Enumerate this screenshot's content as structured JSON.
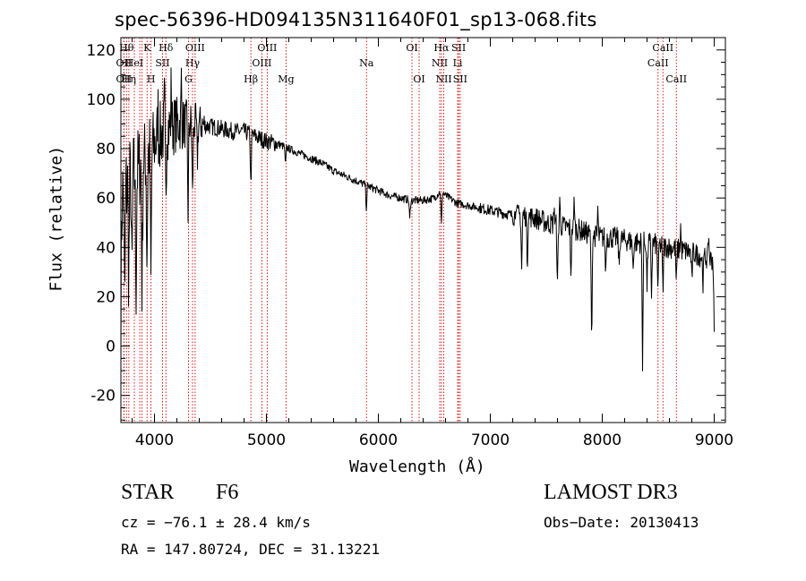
{
  "chart_data": {
    "type": "line",
    "title": "spec-56396-HD094135N311640F01_sp13-068.fits",
    "xlabel": "Wavelength (Å)",
    "ylabel": "Flux (relative)",
    "xlim": [
      3700,
      9100
    ],
    "ylim": [
      -31,
      125
    ],
    "x_ticks": [
      4000,
      5000,
      6000,
      7000,
      8000,
      9000
    ],
    "y_ticks": [
      -20,
      0,
      20,
      40,
      60,
      80,
      100,
      120
    ],
    "grid": false,
    "series": [
      {
        "name": "spectrum",
        "continuum_x": [
          3700,
          3800,
          3900,
          4000,
          4100,
          4200,
          4300,
          4400,
          4500,
          4600,
          4700,
          4800,
          4900,
          5000,
          5100,
          5200,
          5300,
          5400,
          5500,
          5600,
          5700,
          5800,
          5900,
          6000,
          6100,
          6200,
          6300,
          6400,
          6500,
          6560,
          6600,
          6700,
          6800,
          6900,
          7000,
          7100,
          7200,
          7300,
          7400,
          7500,
          7600,
          7700,
          7800,
          7900,
          8000,
          8100,
          8200,
          8300,
          8400,
          8500,
          8600,
          8700,
          8800,
          8900,
          9000
        ],
        "continuum_y": [
          60,
          68,
          75,
          82,
          88,
          90,
          90,
          90,
          89,
          88,
          87,
          87,
          85,
          83,
          82,
          80,
          78,
          76,
          74,
          71,
          69,
          67,
          65,
          63,
          61,
          60,
          59,
          59,
          60,
          63,
          61,
          58,
          57,
          56,
          55,
          54,
          53,
          53,
          52,
          50,
          49,
          48,
          47,
          45,
          44,
          44,
          43,
          42,
          42,
          41,
          40,
          39,
          38,
          36,
          35
        ],
        "absorption_features": [
          {
            "x": 3700,
            "depth": 45
          },
          {
            "x": 3734,
            "depth": 48
          },
          {
            "x": 3770,
            "depth": 40
          },
          {
            "x": 3798,
            "depth": 45
          },
          {
            "x": 3835,
            "depth": 50
          },
          {
            "x": 3889,
            "depth": 55
          },
          {
            "x": 3933,
            "depth": 45
          },
          {
            "x": 3968,
            "depth": 55
          },
          {
            "x": 4101,
            "depth": 30
          },
          {
            "x": 4300,
            "depth": 35
          },
          {
            "x": 4340,
            "depth": 30
          },
          {
            "x": 4383,
            "depth": 15
          },
          {
            "x": 4861,
            "depth": 22
          },
          {
            "x": 5170,
            "depth": 8
          },
          {
            "x": 5893,
            "depth": 10
          },
          {
            "x": 6280,
            "depth": 8
          },
          {
            "x": 6563,
            "depth": 15
          },
          {
            "x": 7280,
            "depth": 22
          },
          {
            "x": 7330,
            "depth": 20
          },
          {
            "x": 7600,
            "depth": 25
          },
          {
            "x": 7720,
            "depth": 18
          },
          {
            "x": 7905,
            "depth": 45
          },
          {
            "x": 8030,
            "depth": 15
          },
          {
            "x": 8150,
            "depth": 12
          },
          {
            "x": 8275,
            "depth": 12
          },
          {
            "x": 8360,
            "depth": 48
          },
          {
            "x": 8400,
            "depth": 18
          },
          {
            "x": 8440,
            "depth": 20
          },
          {
            "x": 8498,
            "depth": 20
          },
          {
            "x": 8542,
            "depth": 20
          },
          {
            "x": 8662,
            "depth": 15
          },
          {
            "x": 8800,
            "depth": 12
          },
          {
            "x": 8900,
            "depth": 10
          },
          {
            "x": 9000,
            "depth": 30
          }
        ],
        "emission_features": [
          {
            "x": 4030,
            "height": 15
          },
          {
            "x": 4090,
            "height": 15
          },
          {
            "x": 4150,
            "height": 20
          },
          {
            "x": 4240,
            "height": 18
          },
          {
            "x": 7230,
            "height": 8
          },
          {
            "x": 7570,
            "height": 10
          },
          {
            "x": 7620,
            "height": 12
          },
          {
            "x": 7750,
            "height": 15
          },
          {
            "x": 7960,
            "height": 12
          },
          {
            "x": 8700,
            "height": 10
          },
          {
            "x": 8950,
            "height": 12
          }
        ]
      }
    ],
    "line_markers": [
      {
        "x": 3727,
        "row": 1,
        "label": "OII"
      },
      {
        "x": 3727,
        "row": 0,
        "label": "OII"
      },
      {
        "x": 3750,
        "row": 2,
        "label": "Hθ"
      },
      {
        "x": 3771,
        "row": 0,
        "label": "Hη"
      },
      {
        "x": 3820,
        "row": 1,
        "label": "HeI"
      },
      {
        "x": 3869,
        "row": 2,
        "label": ""
      },
      {
        "x": 3889,
        "row": 0,
        "label": ""
      },
      {
        "x": 3934,
        "row": 2,
        "label": "K"
      },
      {
        "x": 3969,
        "row": 0,
        "label": "H"
      },
      {
        "x": 4072,
        "row": 1,
        "label": "SII"
      },
      {
        "x": 4102,
        "row": 2,
        "label": "Hδ"
      },
      {
        "x": 4304,
        "row": 0,
        "label": "G"
      },
      {
        "x": 4340,
        "row": 1,
        "label": "Hγ"
      },
      {
        "x": 4363,
        "row": 2,
        "label": "OIII"
      },
      {
        "x": 4861,
        "row": 0,
        "label": "Hβ"
      },
      {
        "x": 4959,
        "row": 1,
        "label": "OIII"
      },
      {
        "x": 5007,
        "row": 2,
        "label": "OIII"
      },
      {
        "x": 5175,
        "row": 0,
        "label": "Mg"
      },
      {
        "x": 5894,
        "row": 1,
        "label": "Na"
      },
      {
        "x": 6300,
        "row": 2,
        "label": "OI"
      },
      {
        "x": 6364,
        "row": 0,
        "label": "OI"
      },
      {
        "x": 6548,
        "row": 1,
        "label": "NII"
      },
      {
        "x": 6563,
        "row": 2,
        "label": "Hα"
      },
      {
        "x": 6584,
        "row": 0,
        "label": "NII"
      },
      {
        "x": 6708,
        "row": 1,
        "label": "Li"
      },
      {
        "x": 6717,
        "row": 2,
        "label": "SII"
      },
      {
        "x": 6731,
        "row": 0,
        "label": "SII"
      },
      {
        "x": 8498,
        "row": 1,
        "label": "CaII"
      },
      {
        "x": 8542,
        "row": 2,
        "label": "CaII"
      },
      {
        "x": 8662,
        "row": 0,
        "label": "CaII"
      }
    ]
  },
  "info": {
    "object_class": "STAR",
    "subclass": "F6",
    "survey": "LAMOST DR3",
    "redshift_text": "cz = −76.1 ± 28.4 km/s",
    "obs_date_text": "Obs−Date: 20130413",
    "coords_text": "RA = 147.80724, DEC =  31.13221"
  },
  "colors": {
    "marker": "#cc0000",
    "spectrum": "#000000",
    "axis": "#000000"
  }
}
